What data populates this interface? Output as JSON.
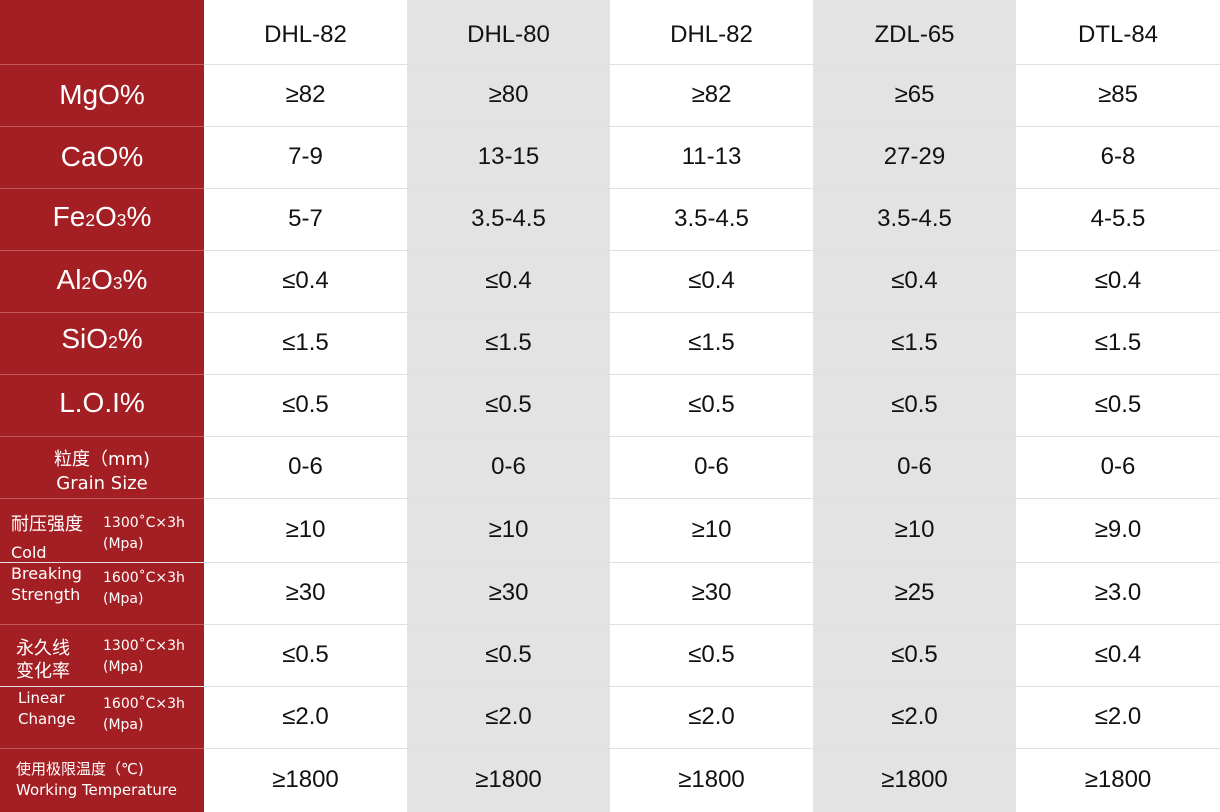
{
  "columns": [
    "DHL-82",
    "DHL-80",
    "DHL-82",
    "ZDL-65",
    "DTL-84"
  ],
  "labels": {
    "mgo": "MgO%",
    "cao": "CaO%",
    "fe2o3": {
      "a": "Fe",
      "s1": "2",
      "b": "O",
      "s2": "3",
      "c": "%"
    },
    "al2o3": {
      "a": "Al",
      "s1": "2",
      "b": "O",
      "s2": "3",
      "c": "%"
    },
    "sio2": {
      "a": "SiO",
      "s1": "2",
      "c": "%"
    },
    "loi": "L.O.I%",
    "grain_cn": "粒度（mm)",
    "grain_en": "Grain Size",
    "cbs_cn": "耐压强度",
    "cbs_en1": "Cold",
    "cbs_en2": "Breaking",
    "cbs_en3": "Strength",
    "plc_cn1": "永久线",
    "plc_cn2": "变化率",
    "plc_en1": "Linear",
    "plc_en2": "Change",
    "cond1300": "1300˚C×3h",
    "cond1600": "1600˚C×3h",
    "unit": "(Mpa)",
    "wt_cn": "使用极限温度（℃)",
    "wt_en": "Working Temperature"
  },
  "rows": [
    [
      "≥82",
      "≥80",
      "≥82",
      "≥65",
      "≥85"
    ],
    [
      "7-9",
      "13-15",
      "11-13",
      "27-29",
      "6-8"
    ],
    [
      "5-7",
      "3.5-4.5",
      "3.5-4.5",
      "3.5-4.5",
      "4-5.5"
    ],
    [
      "≤0.4",
      "≤0.4",
      "≤0.4",
      "≤0.4",
      "≤0.4"
    ],
    [
      "≤1.5",
      "≤1.5",
      "≤1.5",
      "≤1.5",
      "≤1.5"
    ],
    [
      "≤0.5",
      "≤0.5",
      "≤0.5",
      "≤0.5",
      "≤0.5"
    ],
    [
      "0-6",
      "0-6",
      "0-6",
      "0-6",
      "0-6"
    ],
    [
      "≥10",
      "≥10",
      "≥10",
      "≥10",
      "≥9.0"
    ],
    [
      "≥30",
      "≥30",
      "≥30",
      "≥25",
      "≥3.0"
    ],
    [
      "≤0.5",
      "≤0.5",
      "≤0.5",
      "≤0.5",
      "≤0.4"
    ],
    [
      "≤2.0",
      "≤2.0",
      "≤2.0",
      "≤2.0",
      "≤2.0"
    ],
    [
      "≥1800",
      "≥1800",
      "≥1800",
      "≥1800",
      "≥1800"
    ]
  ]
}
